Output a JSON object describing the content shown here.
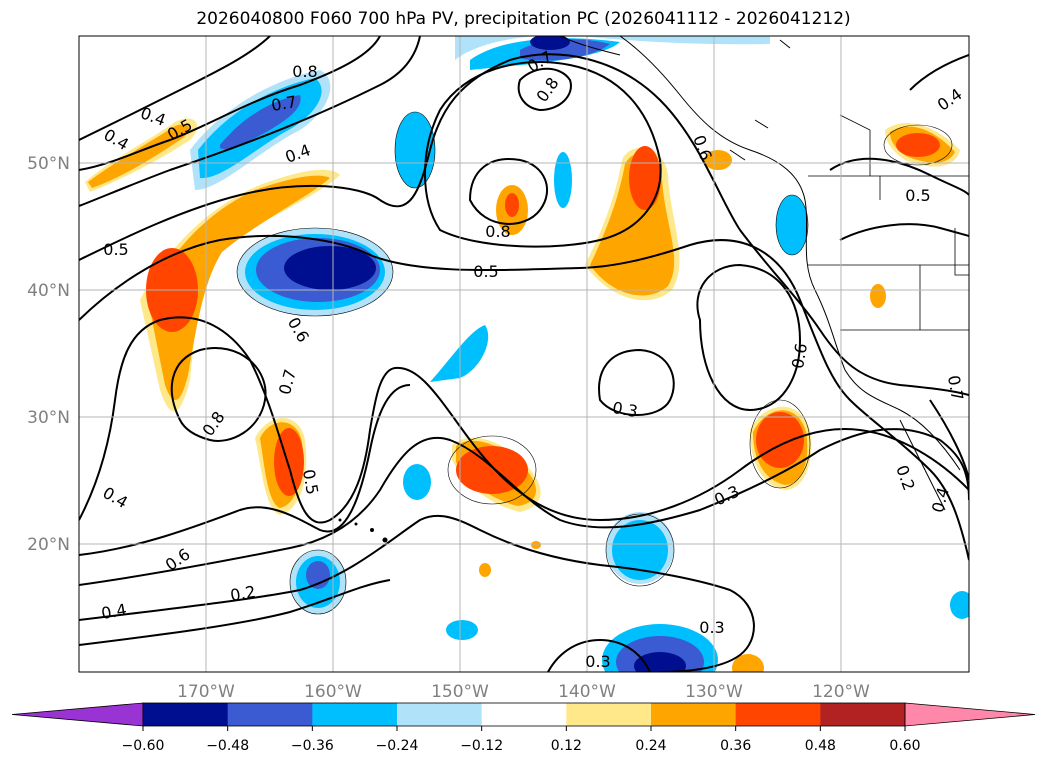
{
  "title": "2026040800 F060 700 hPa PV, precipitation PC (2026041112 - 2026041212)",
  "lat_labels": [
    "50°N",
    "40°N",
    "30°N",
    "20°N"
  ],
  "lon_labels": [
    "170°W",
    "160°W",
    "150°W",
    "140°W",
    "130°W",
    "120°W"
  ],
  "colorbar": {
    "labels": [
      "−0.60",
      "−0.48",
      "−0.36",
      "−0.24",
      "−0.12",
      "0.12",
      "0.24",
      "0.36",
      "0.48",
      "0.60"
    ],
    "colors": [
      "#9a33d4",
      "#000f8f",
      "#3a5bd1",
      "#00bfff",
      "#b0e2fa",
      "#ffffff",
      "#ffe88a",
      "#ffa500",
      "#ff4500",
      "#b22222",
      "#ff88aa"
    ]
  },
  "contour_labels": [
    "0.8",
    "0.7",
    "0.7",
    "0.8",
    "0.4",
    "0.5",
    "0.4",
    "0.5",
    "0.4",
    "0.8",
    "0.5",
    "0.6",
    "0.7",
    "0.8",
    "0.6",
    "0.5",
    "0.4",
    "0.6",
    "0.4",
    "0.2",
    "0.3",
    "0.3",
    "0.6",
    "0.2",
    "0.4",
    "0.3",
    "0.3",
    "0.4",
    "0.5",
    "0.7"
  ],
  "icons": [
    "coastline-icon",
    "state-border-icon"
  ]
}
